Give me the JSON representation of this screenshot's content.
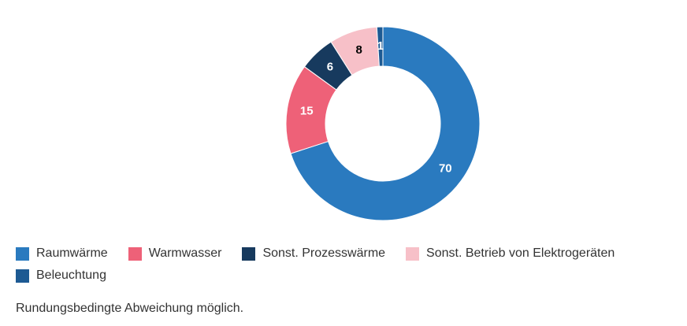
{
  "chart_data": {
    "type": "donut",
    "categories": [
      "Raumwärme",
      "Warmwasser",
      "Sonst. Prozesswärme",
      "Sonst. Betrieb von Elektrogeräten",
      "Beleuchtung"
    ],
    "values": [
      70,
      15,
      6,
      8,
      1
    ],
    "colors": [
      "#2a7abf",
      "#ee6178",
      "#173a5e",
      "#f7c0c8",
      "#1d5a93"
    ],
    "note": "Rundungsbedingte Abweichung möglich."
  }
}
